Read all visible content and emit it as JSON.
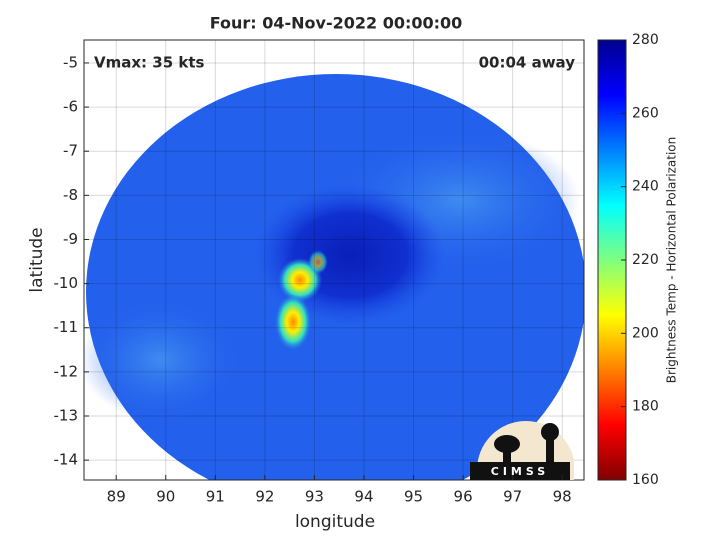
{
  "title": "Four: 04-Nov-2022 00:00:00",
  "annotations": {
    "vmax": "Vmax: 35 kts",
    "away": "00:04 away"
  },
  "map": {
    "xlabel": "longitude",
    "ylabel": "latitude",
    "xlim": [
      88.35,
      98.44
    ],
    "ylim": [
      -14.45,
      -4.48
    ],
    "xticks": [
      89,
      90,
      91,
      92,
      93,
      94,
      95,
      96,
      97,
      98
    ],
    "yticks": [
      -14,
      -13,
      -12,
      -11,
      -10,
      -9,
      -8,
      -7,
      -6,
      -5
    ],
    "grid": true
  },
  "colorbar": {
    "label": "Brightness Temp - Horizontal Polarization",
    "lim": [
      160,
      280
    ],
    "ticks": [
      160,
      180,
      200,
      220,
      240,
      260,
      280
    ]
  },
  "logo": "CIMSS"
}
